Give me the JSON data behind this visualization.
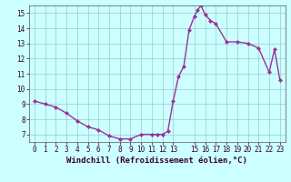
{
  "x": [
    0,
    1,
    2,
    3,
    4,
    5,
    6,
    7,
    8,
    9,
    10,
    11,
    11.5,
    12,
    12.5,
    13,
    13.5,
    14,
    14.5,
    15,
    15.3,
    15.6,
    16,
    16.5,
    17,
    18,
    19,
    20,
    21,
    22,
    22.5,
    23
  ],
  "y": [
    9.2,
    9.0,
    8.8,
    8.4,
    7.9,
    7.5,
    7.3,
    6.9,
    6.7,
    6.7,
    7.0,
    7.0,
    7.0,
    7.0,
    7.2,
    9.2,
    10.8,
    11.5,
    13.9,
    14.8,
    15.2,
    15.5,
    14.9,
    14.5,
    14.3,
    13.1,
    13.1,
    13.0,
    12.7,
    11.1,
    12.6,
    10.6
  ],
  "line_color": "#993399",
  "marker": "D",
  "marker_size": 2,
  "background_color": "#ccffff",
  "grid_color": "#99cccc",
  "xlabel": "Windchill (Refroidissement éolien,°C)",
  "xlabel_fontsize": 6.5,
  "xlim_min": -0.5,
  "xlim_max": 23.5,
  "ylim_min": 6.5,
  "ylim_max": 15.5,
  "xticks": [
    0,
    1,
    2,
    3,
    4,
    5,
    6,
    7,
    8,
    9,
    10,
    11,
    12,
    13,
    15,
    16,
    17,
    18,
    19,
    20,
    21,
    22,
    23
  ],
  "yticks": [
    7,
    8,
    9,
    10,
    11,
    12,
    13,
    14,
    15
  ],
  "tick_fontsize": 5.5,
  "line_width": 1.0,
  "fig_width": 3.2,
  "fig_height": 2.0,
  "dpi": 100
}
